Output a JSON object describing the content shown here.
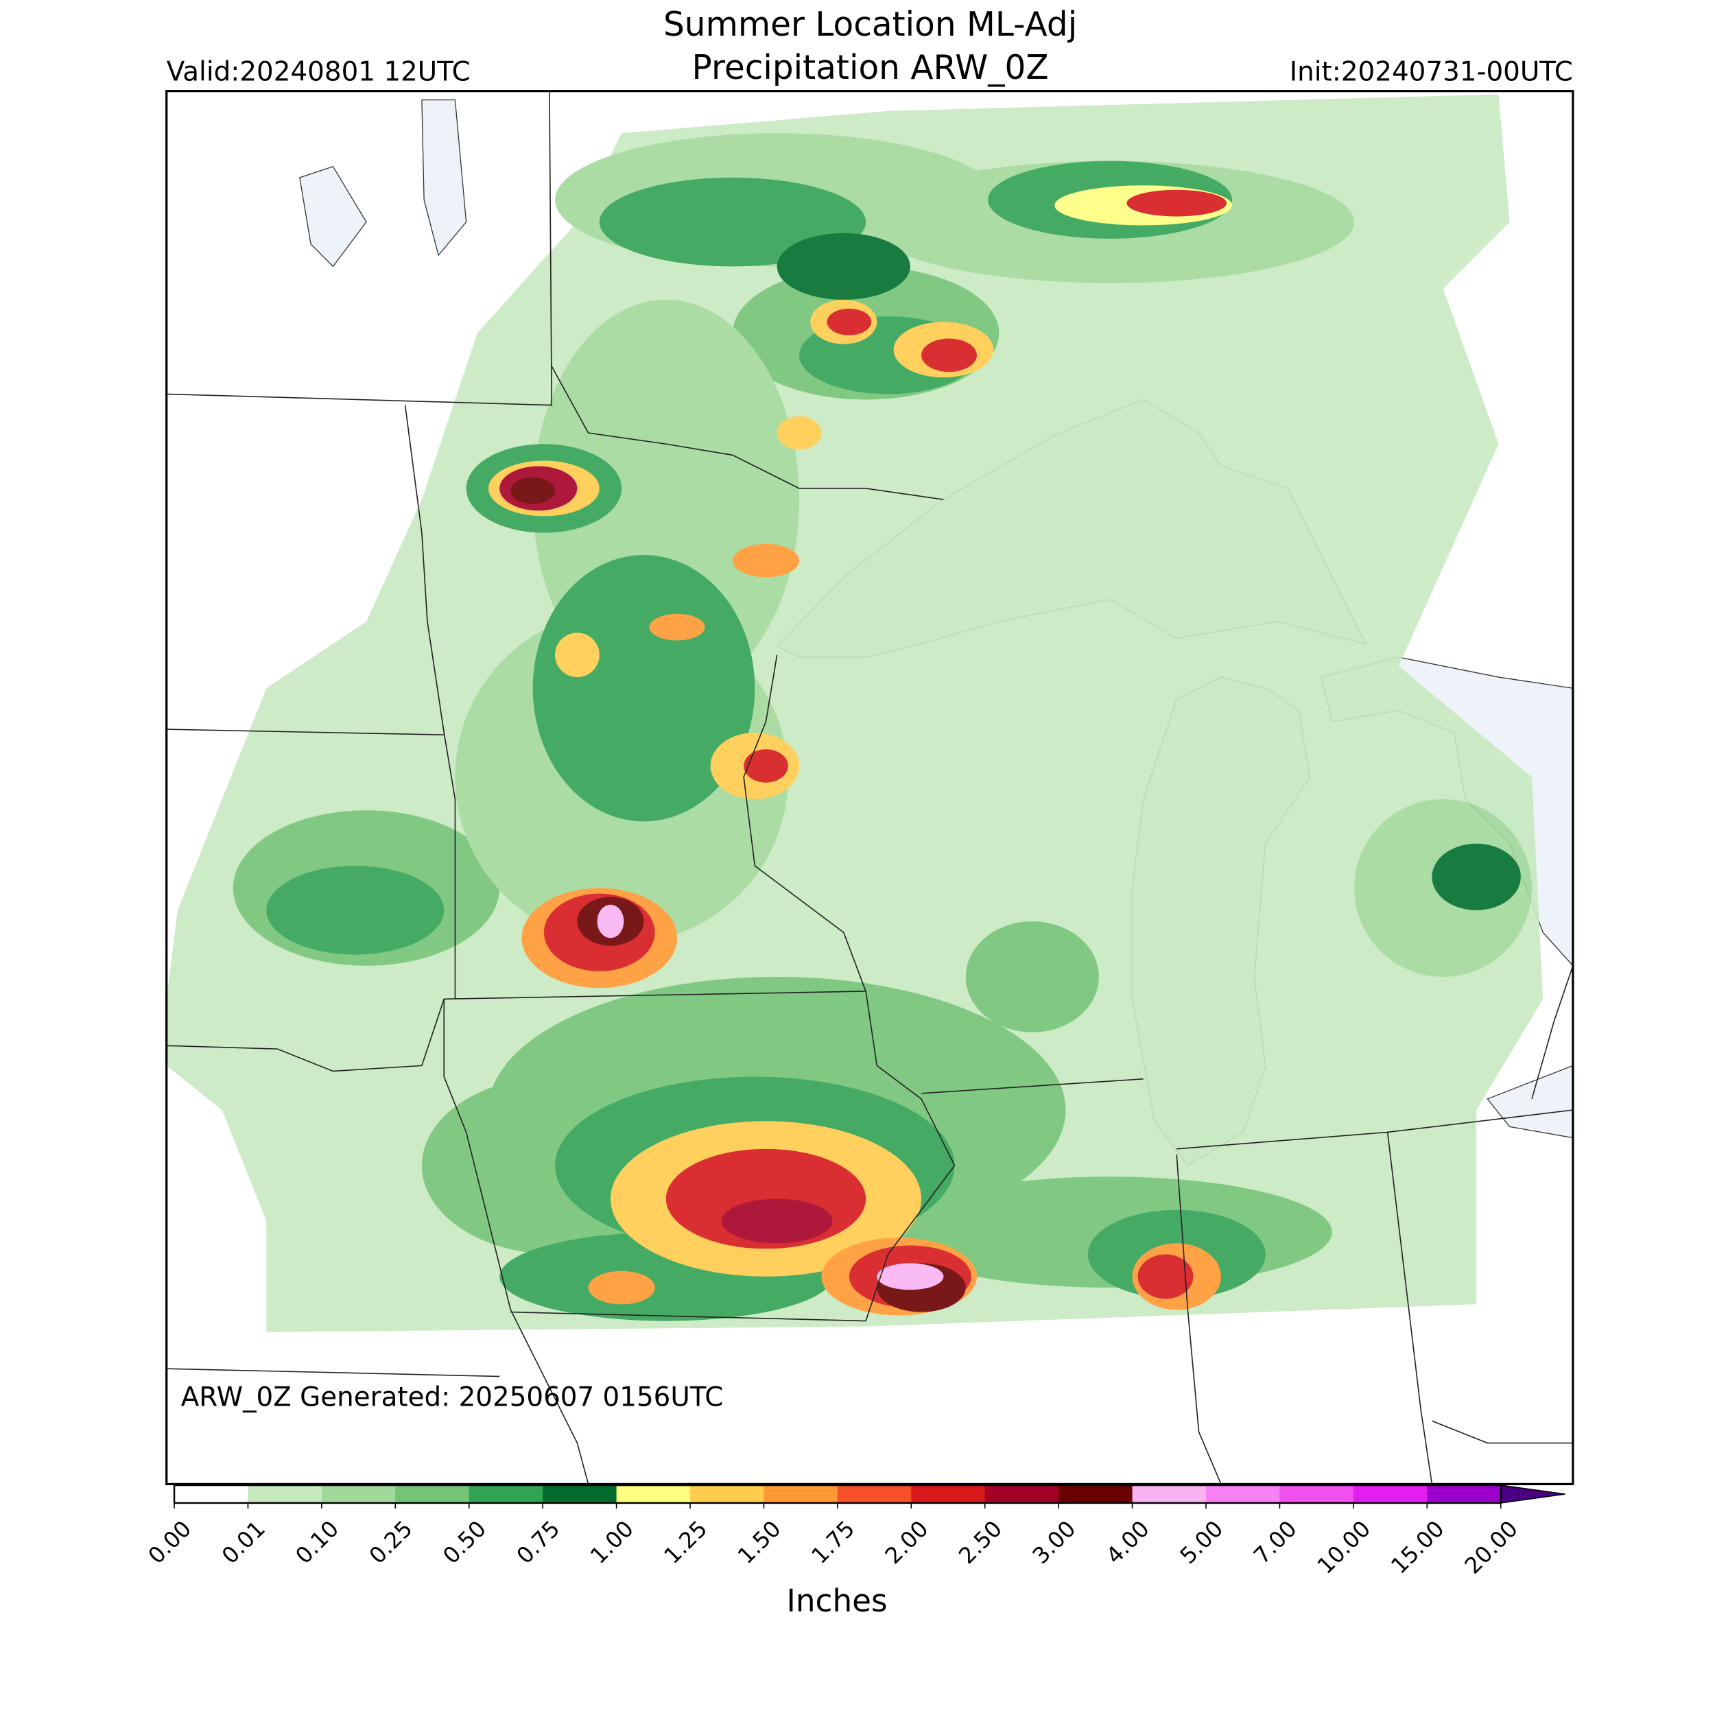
{
  "header": {
    "title": [
      "Summer Location ML-Adj",
      "Precipitation ARW_0Z"
    ],
    "valid": "Valid:20240801 12UTC",
    "init": "Init:20240731-00UTC"
  },
  "map": {
    "footnote": "ARW_0Z Generated: 20250607 0156UTC"
  },
  "colorbar": {
    "label": "Inches",
    "ticks": [
      {
        "value": 0,
        "label": "0.00"
      },
      {
        "value": 0.01,
        "label": "0.01"
      },
      {
        "value": 0.1,
        "label": "0.10"
      },
      {
        "value": 0.25,
        "label": "0.25"
      },
      {
        "value": 0.5,
        "label": "0.50"
      },
      {
        "value": 0.75,
        "label": "0.75"
      },
      {
        "value": 1,
        "label": "1.00"
      },
      {
        "value": 1.25,
        "label": "1.25"
      },
      {
        "value": 1.5,
        "label": "1.50"
      },
      {
        "value": 1.75,
        "label": "1.75"
      },
      {
        "value": 2,
        "label": "2.00"
      },
      {
        "value": 2.5,
        "label": "2.50"
      },
      {
        "value": 3,
        "label": "3.00"
      },
      {
        "value": 4,
        "label": "4.00"
      },
      {
        "value": 5,
        "label": "5.00"
      },
      {
        "value": 7,
        "label": "7.00"
      },
      {
        "value": 10,
        "label": "10.00"
      },
      {
        "value": 15,
        "label": "15.00"
      },
      {
        "value": 20,
        "label": "20.00"
      }
    ],
    "colors": [
      "#ffffff",
      "#c7e9c0",
      "#a1d99b",
      "#74c476",
      "#31a354",
      "#006d2c",
      "#ffff80",
      "#ffcc4d",
      "#ff9933",
      "#f5502a",
      "#d7191c",
      "#a50026",
      "#6b0000",
      "#f9b3f3",
      "#f780f2",
      "#f24ff0",
      "#e31ef0",
      "#9c00cc"
    ],
    "extend_color": "#4b0082"
  }
}
